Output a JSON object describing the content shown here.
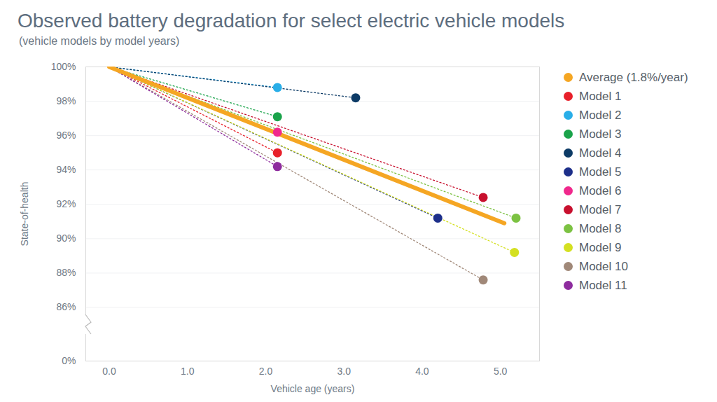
{
  "chart_data": {
    "type": "line",
    "title": "Observed battery degradation for select electric vehicle models",
    "subtitle": "(vehicle models by model years)",
    "x_label": "Vehicle age (years)",
    "y_label": "State-of-health",
    "xlim": [
      -0.3,
      5.5
    ],
    "xticks": [
      0,
      1,
      2,
      3,
      4,
      5
    ],
    "ylim": [
      0,
      100
    ],
    "yticks": [
      {
        "value": 0,
        "label": "0%"
      },
      {
        "value": 86,
        "label": "86%"
      },
      {
        "value": 88,
        "label": "88%"
      },
      {
        "value": 90,
        "label": "90%"
      },
      {
        "value": 92,
        "label": "92%"
      },
      {
        "value": 94,
        "label": "94%"
      },
      {
        "value": 96,
        "label": "96%"
      },
      {
        "value": 98,
        "label": "98%"
      },
      {
        "value": 100,
        "label": "100%"
      }
    ],
    "grid": true,
    "legend": "right",
    "series": [
      {
        "name": "Average (1.8%/year)",
        "color": "#f5a623",
        "line_style": "solid",
        "marker": "none",
        "x": [
          0,
          5.05
        ],
        "values": [
          100,
          90.9
        ]
      },
      {
        "name": "Model 1",
        "color": "#e8202a",
        "line_style": "dotted",
        "marker": "circle",
        "x": [
          0,
          2.15
        ],
        "values": [
          100,
          95.0
        ]
      },
      {
        "name": "Model 2",
        "color": "#29aee8",
        "line_style": "dotted",
        "marker": "circle",
        "x": [
          0,
          2.15
        ],
        "values": [
          100,
          98.8
        ]
      },
      {
        "name": "Model 3",
        "color": "#1aa34a",
        "line_style": "dotted",
        "marker": "circle",
        "x": [
          0,
          2.15
        ],
        "values": [
          100,
          97.1
        ]
      },
      {
        "name": "Model 4",
        "color": "#0d3b66",
        "line_style": "dotted",
        "marker": "circle",
        "x": [
          0,
          3.15
        ],
        "values": [
          100,
          98.2
        ]
      },
      {
        "name": "Model 5",
        "color": "#1d2f8a",
        "line_style": "dotted",
        "marker": "circle",
        "x": [
          0,
          4.2
        ],
        "values": [
          100,
          91.2
        ]
      },
      {
        "name": "Model 6",
        "color": "#f0288c",
        "line_style": "dotted",
        "marker": "circle",
        "x": [
          0,
          2.15
        ],
        "values": [
          100,
          96.2
        ]
      },
      {
        "name": "Model 7",
        "color": "#c8102e",
        "line_style": "dotted",
        "marker": "circle",
        "x": [
          0,
          4.78
        ],
        "values": [
          100,
          92.4
        ]
      },
      {
        "name": "Model 8",
        "color": "#7cc242",
        "line_style": "dotted",
        "marker": "circle",
        "x": [
          0,
          5.2
        ],
        "values": [
          100,
          91.2
        ]
      },
      {
        "name": "Model 9",
        "color": "#d4e021",
        "line_style": "dotted",
        "marker": "circle",
        "x": [
          0,
          5.18
        ],
        "values": [
          100,
          89.2
        ]
      },
      {
        "name": "Model 10",
        "color": "#a08878",
        "line_style": "dotted",
        "marker": "circle",
        "x": [
          0,
          4.78
        ],
        "values": [
          100,
          87.6
        ]
      },
      {
        "name": "Model 11",
        "color": "#8e2c9e",
        "line_style": "dotted",
        "marker": "circle",
        "x": [
          0,
          2.15
        ],
        "values": [
          100,
          94.2
        ]
      }
    ]
  }
}
